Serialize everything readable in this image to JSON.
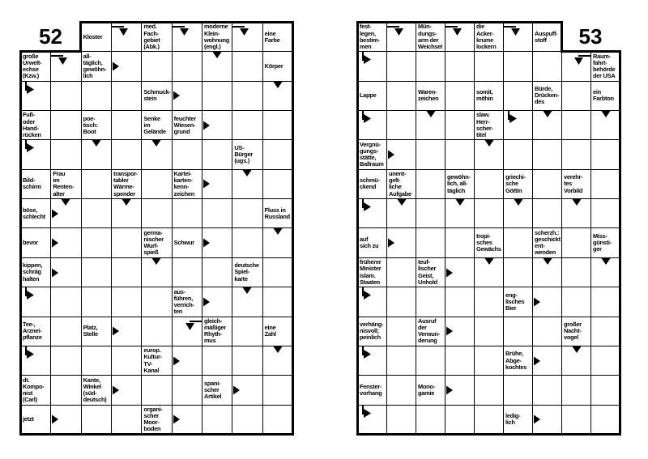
{
  "page": {
    "background_color": "#ffffff",
    "grid_line_color": "#000000",
    "description": "Two swedish-style crossword puzzle grids"
  },
  "icons": {
    "d": "arrow-down-icon",
    "r": "arrow-right-icon",
    "bl": "arrow-bend-left-to-down-icon",
    "br": "arrow-bend-right-to-down-icon",
    "tr": "arrow-bend-top-to-right-icon"
  },
  "puzzles": [
    {
      "number": "52",
      "cells": [
        {
          "r": 1,
          "c": 3,
          "text": "Kloster"
        },
        {
          "r": 1,
          "c": 4,
          "arrows": [
            "bl"
          ]
        },
        {
          "r": 1,
          "c": 5,
          "text": "med.\nFach-\ngebiet\n(Abk.)"
        },
        {
          "r": 1,
          "c": 6,
          "arrows": [
            "bl"
          ]
        },
        {
          "r": 1,
          "c": 7,
          "text": "moderne\nKlein-\nwohnung\n(engl.)"
        },
        {
          "r": 1,
          "c": 8,
          "arrows": [
            "bl"
          ]
        },
        {
          "r": 1,
          "c": 9,
          "text": "eine\nFarbe"
        },
        {
          "r": 2,
          "c": 1,
          "text": "große\nUrwelt-\nechse\n(Kzw.)"
        },
        {
          "r": 2,
          "c": 2,
          "arrows": [
            "bl"
          ]
        },
        {
          "r": 2,
          "c": 3,
          "text": "all-\ntäglich,\ngewöhn-\nlich"
        },
        {
          "r": 2,
          "c": 4,
          "arrows": [
            "r"
          ]
        },
        {
          "r": 2,
          "c": 7,
          "arrows": [
            "d"
          ]
        },
        {
          "r": 2,
          "c": 9,
          "text": "Körper"
        },
        {
          "r": 3,
          "c": 1,
          "arrows": [
            "tr"
          ]
        },
        {
          "r": 3,
          "c": 5,
          "text": "Schmuck-\nstein"
        },
        {
          "r": 3,
          "c": 6,
          "arrows": [
            "r"
          ]
        },
        {
          "r": 3,
          "c": 9,
          "arrows": [
            "d"
          ]
        },
        {
          "r": 4,
          "c": 1,
          "text": "Fuß-\noder\nHand-\nrücken"
        },
        {
          "r": 4,
          "c": 3,
          "text": "poe-\ntisch:\nBoot"
        },
        {
          "r": 4,
          "c": 5,
          "text": "Senke\nim\nGelände"
        },
        {
          "r": 4,
          "c": 6,
          "text": "feuchter\nWiesen-\ngrund"
        },
        {
          "r": 4,
          "c": 7,
          "arrows": [
            "r"
          ]
        },
        {
          "r": 5,
          "c": 1,
          "arrows": [
            "tr"
          ]
        },
        {
          "r": 5,
          "c": 3,
          "arrows": [
            "d"
          ]
        },
        {
          "r": 5,
          "c": 5,
          "arrows": [
            "d"
          ]
        },
        {
          "r": 5,
          "c": 8,
          "text": "US-\nBürger\n(ugs.)"
        },
        {
          "r": 6,
          "c": 1,
          "text": "Bild-\nschirm"
        },
        {
          "r": 6,
          "c": 2,
          "text": "Frau\nim\nRenten-\nalter"
        },
        {
          "r": 6,
          "c": 4,
          "text": "transpor-\ntabler\nWärme-\nspender"
        },
        {
          "r": 6,
          "c": 6,
          "text": "Kartei-\nkarten-\nkenn-\nzeichen"
        },
        {
          "r": 6,
          "c": 7,
          "arrows": [
            "r"
          ]
        },
        {
          "r": 6,
          "c": 8,
          "arrows": [
            "d"
          ]
        },
        {
          "r": 7,
          "c": 1,
          "text": "böse,\nschlecht"
        },
        {
          "r": 7,
          "c": 2,
          "arrows": [
            "d",
            "r"
          ]
        },
        {
          "r": 7,
          "c": 4,
          "arrows": [
            "d"
          ]
        },
        {
          "r": 7,
          "c": 9,
          "text": "Fluss in\nRussland"
        },
        {
          "r": 8,
          "c": 1,
          "text": "bevor"
        },
        {
          "r": 8,
          "c": 2,
          "arrows": [
            "r"
          ]
        },
        {
          "r": 8,
          "c": 5,
          "text": "germa-\nnischer\nWurf-\nspieß"
        },
        {
          "r": 8,
          "c": 6,
          "text": "Schwur"
        },
        {
          "r": 8,
          "c": 7,
          "arrows": [
            "r"
          ]
        },
        {
          "r": 8,
          "c": 9,
          "arrows": [
            "d"
          ]
        },
        {
          "r": 9,
          "c": 1,
          "text": "kippen,\nschräg\nhalten"
        },
        {
          "r": 9,
          "c": 2,
          "arrows": [
            "r"
          ]
        },
        {
          "r": 9,
          "c": 5,
          "arrows": [
            "d"
          ]
        },
        {
          "r": 9,
          "c": 8,
          "text": "deutsche\nSpiel-\nkarte"
        },
        {
          "r": 10,
          "c": 1,
          "arrows": [
            "tr"
          ]
        },
        {
          "r": 10,
          "c": 6,
          "text": "aus-\nführen,\nverrich-\nten"
        },
        {
          "r": 10,
          "c": 7,
          "arrows": [
            "r"
          ]
        },
        {
          "r": 10,
          "c": 8,
          "arrows": [
            "d"
          ]
        },
        {
          "r": 11,
          "c": 1,
          "text": "Tee-,\nArznei-\npflanze"
        },
        {
          "r": 11,
          "c": 3,
          "text": "Platz,\nStelle"
        },
        {
          "r": 11,
          "c": 4,
          "arrows": [
            "r"
          ]
        },
        {
          "r": 11,
          "c": 6,
          "arrows": [
            "br"
          ]
        },
        {
          "r": 11,
          "c": 7,
          "text": "gleich-\nmäßiger\nRhyth-\nmus"
        },
        {
          "r": 11,
          "c": 9,
          "text": "eine\nZahl"
        },
        {
          "r": 12,
          "c": 1,
          "arrows": [
            "tr"
          ]
        },
        {
          "r": 12,
          "c": 5,
          "text": "europ.\nKultur-\nTV-\nKanal"
        },
        {
          "r": 12,
          "c": 6,
          "arrows": [
            "r"
          ]
        },
        {
          "r": 12,
          "c": 9,
          "arrows": [
            "d"
          ]
        },
        {
          "r": 13,
          "c": 1,
          "text": "dt.\nKompo-\nnist\n(Carl)"
        },
        {
          "r": 13,
          "c": 3,
          "text": "Kante,\nWinkel\n(süd-\ndeutsch)"
        },
        {
          "r": 13,
          "c": 4,
          "arrows": [
            "r"
          ]
        },
        {
          "r": 13,
          "c": 7,
          "text": "spani-\nscher\nArtikel"
        },
        {
          "r": 13,
          "c": 8,
          "arrows": [
            "r"
          ]
        },
        {
          "r": 14,
          "c": 1,
          "text": "jetzt"
        },
        {
          "r": 14,
          "c": 2,
          "arrows": [
            "r"
          ]
        },
        {
          "r": 14,
          "c": 5,
          "text": "organi-\nscher\nMoor-\nboden"
        },
        {
          "r": 14,
          "c": 6,
          "arrows": [
            "r"
          ]
        }
      ]
    },
    {
      "number": "53",
      "cells": [
        {
          "r": 1,
          "c": 1,
          "text": "fest-\nlegen,\nbestim-\nmen"
        },
        {
          "r": 1,
          "c": 2,
          "arrows": [
            "bl"
          ]
        },
        {
          "r": 1,
          "c": 3,
          "text": "Mün-\ndungs-\narm der\nWeichsel"
        },
        {
          "r": 1,
          "c": 4,
          "arrows": [
            "bl"
          ]
        },
        {
          "r": 1,
          "c": 5,
          "text": "die\nAcker-\nkrume\nlockern"
        },
        {
          "r": 1,
          "c": 6,
          "arrows": [
            "bl"
          ]
        },
        {
          "r": 1,
          "c": 7,
          "text": "Auspuff-\nstoff"
        },
        {
          "r": 2,
          "c": 1,
          "arrows": [
            "tr"
          ]
        },
        {
          "r": 2,
          "c": 8,
          "arrows": [
            "br"
          ]
        },
        {
          "r": 2,
          "c": 9,
          "text": "Raum-\nfahrt-\nbehörde\nder USA"
        },
        {
          "r": 3,
          "c": 1,
          "text": "Lappe"
        },
        {
          "r": 3,
          "c": 3,
          "text": "Waren-\nzeichen"
        },
        {
          "r": 3,
          "c": 5,
          "text": "somit,\nmithin"
        },
        {
          "r": 3,
          "c": 7,
          "text": "Bürde,\nDrücken-\ndes"
        },
        {
          "r": 3,
          "c": 9,
          "text": "ein\nFarbton"
        },
        {
          "r": 4,
          "c": 1,
          "arrows": [
            "tr"
          ]
        },
        {
          "r": 4,
          "c": 3,
          "arrows": [
            "d"
          ]
        },
        {
          "r": 4,
          "c": 5,
          "text": "slaw.\nHerr-\nscher-\ntitel"
        },
        {
          "r": 4,
          "c": 6,
          "arrows": [
            "tr"
          ]
        },
        {
          "r": 4,
          "c": 7,
          "arrows": [
            "d"
          ]
        },
        {
          "r": 4,
          "c": 9,
          "arrows": [
            "d"
          ]
        },
        {
          "r": 5,
          "c": 1,
          "text": "Vergnü-\ngungs-\nstätte,\nBallraum"
        },
        {
          "r": 5,
          "c": 2,
          "arrows": [
            "r"
          ]
        },
        {
          "r": 5,
          "c": 5,
          "arrows": [
            "d"
          ]
        },
        {
          "r": 6,
          "c": 1,
          "text": "schmü-\nckend"
        },
        {
          "r": 6,
          "c": 2,
          "text": "unent-\ngelt-\nliche\nAufgabe"
        },
        {
          "r": 6,
          "c": 4,
          "text": "gewöhn-\nlich, all-\ntäglich"
        },
        {
          "r": 6,
          "c": 6,
          "text": "griechi-\nsche\nGöttin"
        },
        {
          "r": 6,
          "c": 8,
          "text": "verehr-\ntes\nVorbild"
        },
        {
          "r": 7,
          "c": 1,
          "arrows": [
            "tr"
          ]
        },
        {
          "r": 7,
          "c": 2,
          "arrows": [
            "d"
          ]
        },
        {
          "r": 7,
          "c": 4,
          "arrows": [
            "d"
          ]
        },
        {
          "r": 7,
          "c": 6,
          "arrows": [
            "d"
          ]
        },
        {
          "r": 7,
          "c": 8,
          "arrows": [
            "d"
          ]
        },
        {
          "r": 8,
          "c": 1,
          "text": "auf\nsich zu"
        },
        {
          "r": 8,
          "c": 2,
          "arrows": [
            "r"
          ]
        },
        {
          "r": 8,
          "c": 5,
          "text": "tropi-\nsches\nGewächs"
        },
        {
          "r": 8,
          "c": 7,
          "text": "scherzh.:\ngeschickt\nent-\nwenden"
        },
        {
          "r": 8,
          "c": 9,
          "text": "Miss-\ngünsti-\nger"
        },
        {
          "r": 9,
          "c": 1,
          "text": "früherer\nMinister\nislam.\nStaaten"
        },
        {
          "r": 9,
          "c": 3,
          "text": "teuf-\nlischer\nGeist,\nUnhold"
        },
        {
          "r": 9,
          "c": 4,
          "arrows": [
            "r"
          ]
        },
        {
          "r": 9,
          "c": 5,
          "arrows": [
            "d"
          ]
        },
        {
          "r": 9,
          "c": 7,
          "arrows": [
            "d"
          ]
        },
        {
          "r": 9,
          "c": 9,
          "arrows": [
            "d"
          ]
        },
        {
          "r": 10,
          "c": 1,
          "arrows": [
            "tr"
          ]
        },
        {
          "r": 10,
          "c": 6,
          "text": "eng-\nlisches\nBier"
        },
        {
          "r": 10,
          "c": 7,
          "arrows": [
            "r"
          ]
        },
        {
          "r": 11,
          "c": 1,
          "text": "verhäng-\nnisvoll;\npeinlich"
        },
        {
          "r": 11,
          "c": 3,
          "text": "Ausruf\nder\nVerwun-\nderung"
        },
        {
          "r": 11,
          "c": 4,
          "arrows": [
            "r"
          ]
        },
        {
          "r": 11,
          "c": 8,
          "text": "großer\nNacht-\nvogel"
        },
        {
          "r": 12,
          "c": 1,
          "arrows": [
            "tr"
          ]
        },
        {
          "r": 12,
          "c": 6,
          "text": "Brühe,\nAbge-\nkochtes"
        },
        {
          "r": 12,
          "c": 7,
          "arrows": [
            "r"
          ]
        },
        {
          "r": 12,
          "c": 8,
          "arrows": [
            "d"
          ]
        },
        {
          "r": 13,
          "c": 1,
          "text": "Fenster-\nvorhang"
        },
        {
          "r": 13,
          "c": 3,
          "text": "Mono-\ngamie"
        },
        {
          "r": 13,
          "c": 4,
          "arrows": [
            "r"
          ]
        },
        {
          "r": 14,
          "c": 1,
          "arrows": [
            "tr"
          ]
        },
        {
          "r": 14,
          "c": 6,
          "text": "ledig-\nlich"
        },
        {
          "r": 14,
          "c": 7,
          "arrows": [
            "r"
          ]
        }
      ]
    }
  ]
}
